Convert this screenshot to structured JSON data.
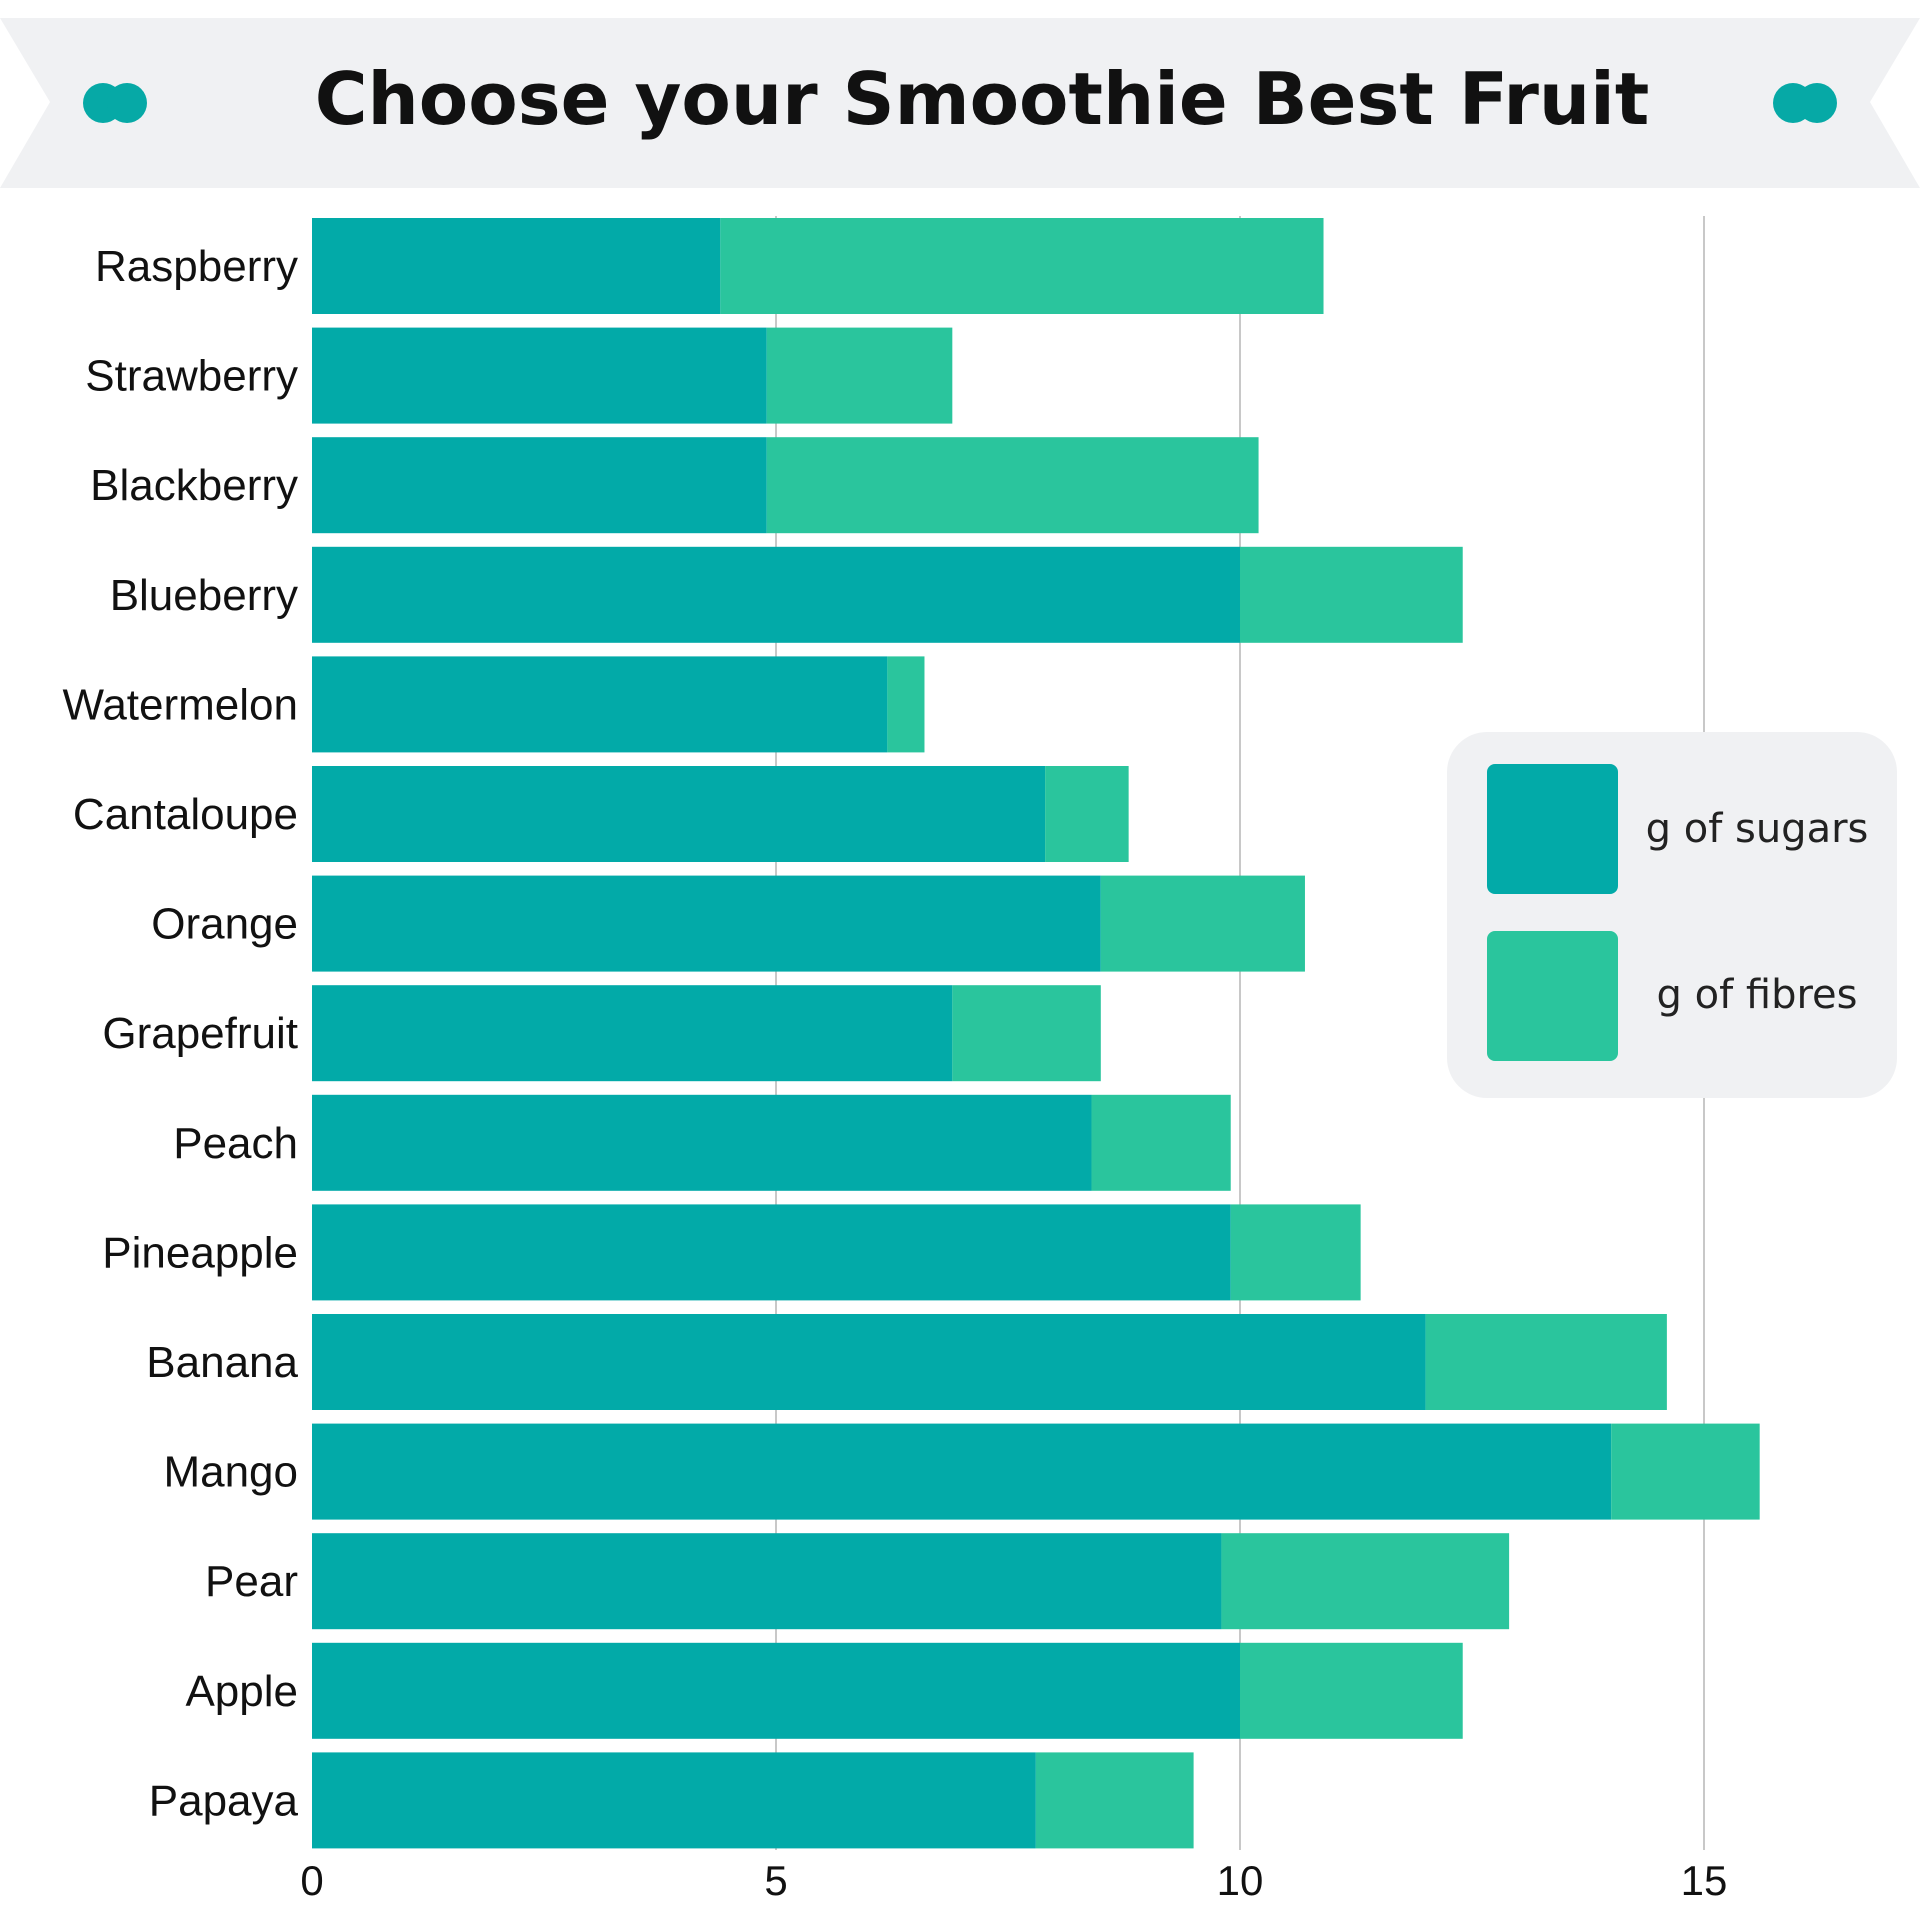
{
  "header": {
    "title": "Choose your Smoothie Best Fruit",
    "banner_color": "#f0f1f3",
    "ornament_color": "#06a9a6"
  },
  "legend": {
    "placement": "right-middle",
    "background": "#f0f1f3",
    "items": [
      {
        "label": "g of sugars",
        "color": "#02aaa8"
      },
      {
        "label": "g of fibres",
        "color": "#2ac59d"
      }
    ]
  },
  "chart_data": {
    "type": "bar",
    "orientation": "horizontal",
    "stacked": true,
    "title": "Choose your Smoothie Best Fruit",
    "xlabel": "",
    "ylabel": "",
    "xlim": [
      0,
      17.5
    ],
    "xticks": [
      0,
      5,
      10,
      15
    ],
    "grid": "vertical",
    "legend_placement": "right-middle",
    "categories": [
      "Raspberry",
      "Strawberry",
      "Blackberry",
      "Blueberry",
      "Watermelon",
      "Cantaloupe",
      "Orange",
      "Grapefruit",
      "Peach",
      "Pineapple",
      "Banana",
      "Mango",
      "Pear",
      "Apple",
      "Papaya"
    ],
    "series": [
      {
        "name": "g of sugars",
        "color": "#02aaa8",
        "values": [
          4.4,
          4.9,
          4.9,
          10.0,
          6.2,
          7.9,
          8.5,
          6.9,
          8.4,
          9.9,
          12.0,
          14.0,
          9.8,
          10.0,
          7.8
        ]
      },
      {
        "name": "g of fibres",
        "color": "#2ac59d",
        "values": [
          6.5,
          2.0,
          5.3,
          2.4,
          0.4,
          0.9,
          2.2,
          1.6,
          1.5,
          1.4,
          2.6,
          1.6,
          3.1,
          2.4,
          1.7
        ]
      }
    ]
  }
}
